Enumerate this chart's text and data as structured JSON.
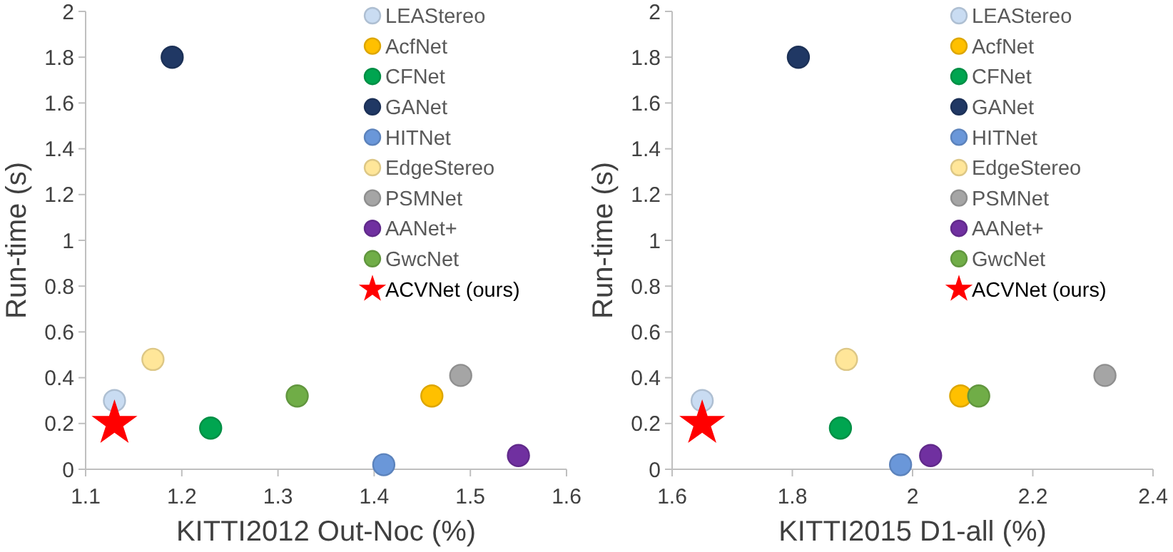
{
  "chart_data": [
    {
      "type": "scatter",
      "xlabel": "KITTI2012 Out-Noc (%)",
      "ylabel": "Run-time (s)",
      "xlim": [
        1.1,
        1.6
      ],
      "xticks": [
        1.1,
        1.2,
        1.3,
        1.4,
        1.5,
        1.6
      ],
      "ylim": [
        0,
        2
      ],
      "yticks": [
        0,
        0.2,
        0.4,
        0.6,
        0.8,
        1,
        1.2,
        1.4,
        1.6,
        1.8,
        2
      ],
      "grid": false,
      "legend": "top right",
      "marker": "circle",
      "series": [
        {
          "name": "LEAStereo",
          "color": "#c9dcf2",
          "x": [
            1.13
          ],
          "values": [
            0.3
          ]
        },
        {
          "name": "AcfNet",
          "color": "#ffc000",
          "x": [
            1.46
          ],
          "values": [
            0.32
          ]
        },
        {
          "name": "CFNet",
          "color": "#00a550",
          "x": [
            1.23
          ],
          "values": [
            0.18
          ]
        },
        {
          "name": "GANet",
          "color": "#203864",
          "x": [
            1.19
          ],
          "values": [
            1.8
          ]
        },
        {
          "name": "HITNet",
          "color": "#6a97d9",
          "x": [
            1.41
          ],
          "values": [
            0.02
          ]
        },
        {
          "name": "EdgeStereo",
          "color": "#ffe699",
          "x": [
            1.17
          ],
          "values": [
            0.48
          ]
        },
        {
          "name": "PSMNet",
          "color": "#a5a5a5",
          "x": [
            1.49
          ],
          "values": [
            0.41
          ]
        },
        {
          "name": "AANet+",
          "color": "#7030a0",
          "x": [
            1.55
          ],
          "values": [
            0.06
          ]
        },
        {
          "name": "GwcNet",
          "color": "#70ad47",
          "x": [
            1.32
          ],
          "values": [
            0.32
          ]
        },
        {
          "name": "ACVNet (ours)",
          "color": "#ff0000",
          "marker": "star",
          "x": [
            1.13
          ],
          "values": [
            0.2
          ]
        }
      ]
    },
    {
      "type": "scatter",
      "xlabel": "KITTI2015 D1-all (%)",
      "ylabel": "Run-time (s)",
      "xlim": [
        1.6,
        2.4
      ],
      "xticks": [
        1.6,
        1.8,
        2,
        2.2,
        2.4
      ],
      "ylim": [
        0,
        2
      ],
      "yticks": [
        0,
        0.2,
        0.4,
        0.6,
        0.8,
        1,
        1.2,
        1.4,
        1.6,
        1.8,
        2
      ],
      "grid": false,
      "legend": "top right",
      "marker": "circle",
      "series": [
        {
          "name": "LEAStereo",
          "color": "#c9dcf2",
          "x": [
            1.65
          ],
          "values": [
            0.3
          ]
        },
        {
          "name": "AcfNet",
          "color": "#ffc000",
          "x": [
            2.08
          ],
          "values": [
            0.32
          ]
        },
        {
          "name": "CFNet",
          "color": "#00a550",
          "x": [
            1.88
          ],
          "values": [
            0.18
          ]
        },
        {
          "name": "GANet",
          "color": "#203864",
          "x": [
            1.81
          ],
          "values": [
            1.8
          ]
        },
        {
          "name": "HITNet",
          "color": "#6a97d9",
          "x": [
            1.98
          ],
          "values": [
            0.02
          ]
        },
        {
          "name": "EdgeStereo",
          "color": "#ffe699",
          "x": [
            1.89
          ],
          "values": [
            0.48
          ]
        },
        {
          "name": "PSMNet",
          "color": "#a5a5a5",
          "x": [
            2.32
          ],
          "values": [
            0.41
          ]
        },
        {
          "name": "AANet+",
          "color": "#7030a0",
          "x": [
            2.03
          ],
          "values": [
            0.06
          ]
        },
        {
          "name": "GwcNet",
          "color": "#70ad47",
          "x": [
            2.11
          ],
          "values": [
            0.32
          ]
        },
        {
          "name": "ACVNet (ours)",
          "color": "#ff0000",
          "marker": "star",
          "x": [
            1.65
          ],
          "values": [
            0.2
          ]
        }
      ]
    }
  ]
}
